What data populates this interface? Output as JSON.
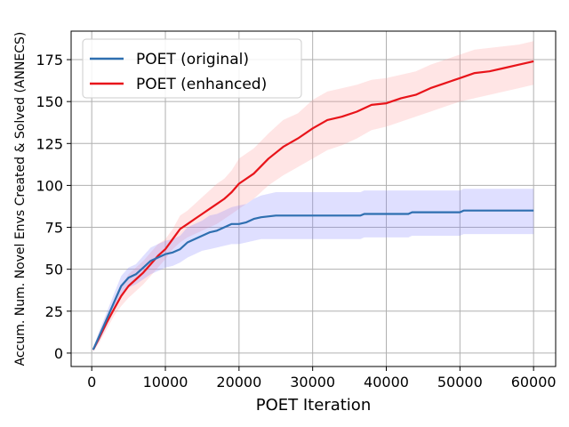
{
  "chart_data": {
    "type": "line",
    "title": "",
    "xlabel": "POET Iteration",
    "ylabel": "Accum. Num. Novel Envs Created & Solved (ANNECS)",
    "xlim": [
      -2800,
      63000
    ],
    "ylim": [
      -8,
      192
    ],
    "xticks": [
      0,
      10000,
      20000,
      30000,
      40000,
      50000,
      60000
    ],
    "xtick_labels": [
      "0",
      "10000",
      "20000",
      "30000",
      "40000",
      "50000",
      "60000"
    ],
    "yticks": [
      0,
      25,
      50,
      75,
      100,
      125,
      150,
      175
    ],
    "ytick_labels": [
      "0",
      "25",
      "50",
      "75",
      "100",
      "125",
      "150",
      "175"
    ],
    "grid": true,
    "legend_position": "upper-left",
    "series": [
      {
        "name": "POET (original)",
        "color": "#2e6fb0",
        "band_color": "#8080ff",
        "x": [
          200,
          1000,
          2000,
          3000,
          4000,
          5000,
          6000,
          7000,
          8000,
          9000,
          10000,
          11000,
          12000,
          13000,
          14000,
          15000,
          16000,
          17000,
          18000,
          19000,
          20000,
          21000,
          22000,
          23000,
          25000,
          28000,
          32000,
          36500,
          37000,
          43000,
          43500,
          50000,
          50500,
          60000
        ],
        "y": [
          2,
          10,
          20,
          30,
          40,
          45,
          47,
          51,
          55,
          57,
          59,
          60,
          62,
          66,
          68,
          70,
          72,
          73,
          75,
          77,
          77,
          78,
          80,
          81,
          82,
          82,
          82,
          82,
          83,
          83,
          84,
          84,
          85,
          85
        ],
        "lower": [
          1,
          7,
          16,
          25,
          34,
          39,
          41,
          44,
          47,
          49,
          51,
          52,
          54,
          57,
          59,
          61,
          62,
          63,
          64,
          65,
          65,
          66,
          67,
          68,
          68,
          68,
          68,
          68,
          69,
          69,
          70,
          70,
          71,
          71
        ],
        "upper": [
          3,
          13,
          24,
          35,
          46,
          51,
          53,
          58,
          63,
          65,
          67,
          68,
          70,
          75,
          77,
          79,
          82,
          83,
          85,
          87,
          88,
          89,
          92,
          94,
          96,
          96,
          96,
          96,
          97,
          97,
          97,
          97,
          98,
          98
        ]
      },
      {
        "name": "POET (enhanced)",
        "color": "#e8141a",
        "band_color": "#ff9999",
        "x": [
          200,
          1000,
          2000,
          3000,
          4000,
          5000,
          6000,
          7000,
          8000,
          9000,
          10000,
          11000,
          12000,
          13000,
          14000,
          15000,
          16000,
          17000,
          18000,
          19000,
          20000,
          22000,
          24000,
          26000,
          28000,
          30000,
          32000,
          34000,
          36000,
          38000,
          40000,
          42000,
          44000,
          46000,
          48000,
          50000,
          52000,
          54000,
          56000,
          58000,
          60000
        ],
        "y": [
          2,
          9,
          18,
          26,
          34,
          40,
          44,
          48,
          53,
          58,
          62,
          68,
          74,
          77,
          80,
          83,
          86,
          89,
          92,
          96,
          101,
          107,
          116,
          123,
          128,
          134,
          139,
          141,
          144,
          148,
          149,
          152,
          154,
          158,
          161,
          164,
          167,
          168,
          170,
          172,
          174
        ],
        "lower": [
          1,
          6,
          14,
          22,
          28,
          33,
          37,
          41,
          46,
          51,
          56,
          62,
          66,
          69,
          71,
          73,
          75,
          77,
          80,
          83,
          86,
          92,
          100,
          106,
          111,
          116,
          121,
          124,
          128,
          133,
          135,
          138,
          141,
          144,
          147,
          150,
          152,
          154,
          156,
          158,
          160
        ],
        "upper": [
          3,
          12,
          22,
          30,
          40,
          47,
          51,
          55,
          60,
          65,
          68,
          74,
          82,
          85,
          89,
          93,
          97,
          101,
          104,
          109,
          116,
          122,
          131,
          139,
          143,
          151,
          156,
          158,
          160,
          163,
          164,
          166,
          168,
          172,
          175,
          178,
          181,
          182,
          183,
          184,
          186
        ]
      }
    ]
  }
}
